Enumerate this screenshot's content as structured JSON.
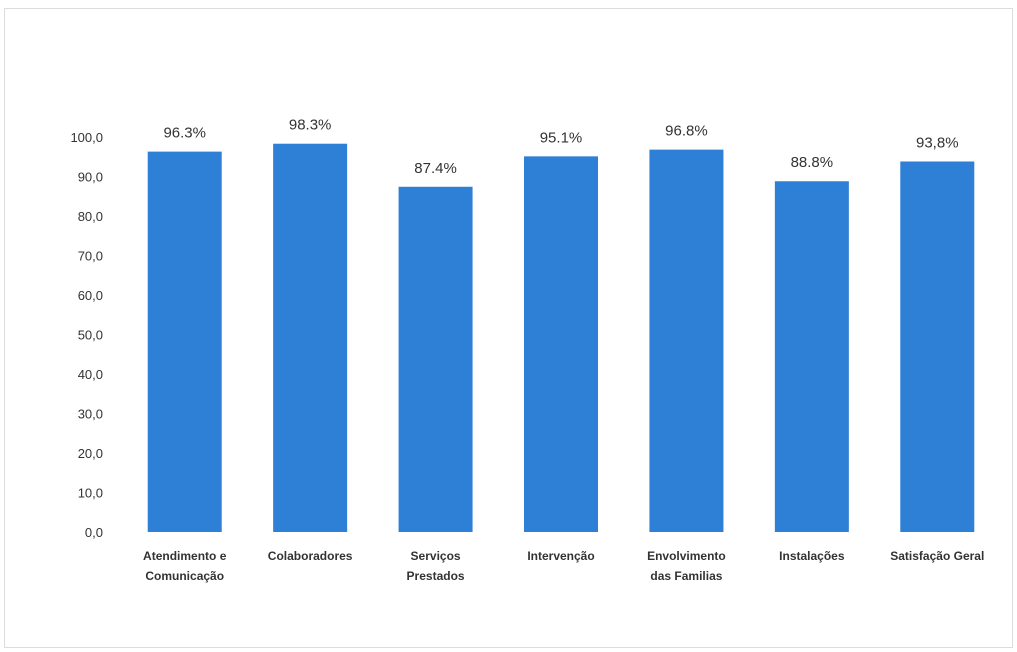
{
  "chart_data": {
    "type": "bar",
    "categories": [
      "Atendimento e Comunicação",
      "Colaboradores",
      "Serviços Prestados",
      "Intervenção",
      "Envolvimento das Familias",
      "Instalações",
      "Satisfação Geral"
    ],
    "category_lines": [
      [
        "Atendimento e",
        "Comunicação"
      ],
      [
        "Colaboradores"
      ],
      [
        "Serviços",
        "Prestados"
      ],
      [
        "Intervenção"
      ],
      [
        "Envolvimento",
        "das Familias"
      ],
      [
        "Instalações"
      ],
      [
        "Satisfação Geral"
      ]
    ],
    "values": [
      96.3,
      98.3,
      87.4,
      95.1,
      96.8,
      88.8,
      93.8
    ],
    "data_labels": [
      "96.3%",
      "98.3%",
      "87.4%",
      "95.1%",
      "96.8%",
      "88.8%",
      "93,8%"
    ],
    "ylim": [
      0,
      100
    ],
    "yticks": [
      0,
      10,
      20,
      30,
      40,
      50,
      60,
      70,
      80,
      90,
      100
    ],
    "ytick_labels": [
      "0,0",
      "10,0",
      "20,0",
      "30,0",
      "40,0",
      "50,0",
      "60,0",
      "70,0",
      "80,0",
      "90,0",
      "100,0"
    ],
    "title": "",
    "xlabel": "",
    "ylabel": "",
    "grid": false,
    "legend": "none",
    "bar_color": "#2e7fd6"
  }
}
